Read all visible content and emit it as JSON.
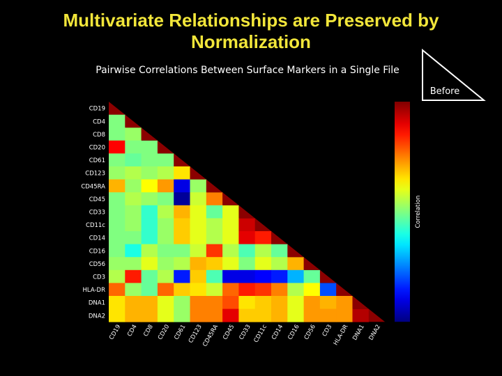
{
  "slide": {
    "title_line1": "Multivariate Relationships are Preserved by",
    "title_line2": "Normalization",
    "title_color": "#F2E63A",
    "background": "#000000"
  },
  "badge": {
    "label": "Before"
  },
  "chart_data": {
    "type": "heatmap",
    "title": "Pairwise Correlations Between Surface Markers in a Single File",
    "markers": [
      "CD19",
      "CD4",
      "CD8",
      "CD20",
      "CD61",
      "CD123",
      "CD45RA",
      "CD45",
      "CD33",
      "CD11c",
      "CD14",
      "CD16",
      "CD56",
      "CD3",
      "HLA-DR",
      "DNA1",
      "DNA2"
    ],
    "triangle": "lower",
    "diagonal_color": "#8B0000",
    "colorbar": {
      "label": "Correlation",
      "colormap": "jet",
      "range": [
        -1,
        1
      ],
      "ticks_visible": false
    },
    "values": [
      [],
      [
        0.0
      ],
      [
        0.0,
        0.05
      ],
      [
        0.75,
        0.0,
        0.0
      ],
      [
        0.0,
        -0.05,
        0.0,
        0.0
      ],
      [
        0.05,
        0.1,
        0.05,
        0.1,
        0.3
      ],
      [
        0.4,
        0.05,
        0.25,
        0.45,
        -0.8,
        0.05
      ],
      [
        0.0,
        0.1,
        0.05,
        0.0,
        -0.95,
        0.15,
        0.5
      ],
      [
        0.0,
        0.05,
        -0.15,
        0.1,
        0.4,
        0.2,
        -0.05,
        0.2
      ],
      [
        0.0,
        0.05,
        -0.15,
        0.05,
        0.35,
        0.2,
        0.1,
        0.2,
        0.85
      ],
      [
        0.0,
        0.0,
        -0.15,
        0.05,
        0.35,
        0.2,
        0.1,
        0.2,
        0.8,
        0.7
      ],
      [
        0.0,
        -0.2,
        0.1,
        0.0,
        0.0,
        0.15,
        0.65,
        0.1,
        -0.1,
        0.1,
        -0.05
      ],
      [
        0.05,
        0.05,
        0.2,
        0.05,
        0.1,
        0.4,
        0.35,
        0.2,
        0.0,
        0.2,
        0.1,
        0.4
      ],
      [
        0.1,
        0.7,
        -0.05,
        0.1,
        -0.7,
        0.35,
        -0.1,
        -0.8,
        -0.8,
        -0.75,
        -0.7,
        -0.4,
        -0.05
      ],
      [
        0.55,
        0.05,
        -0.05,
        0.55,
        0.35,
        0.3,
        0.15,
        0.55,
        0.7,
        0.65,
        0.5,
        0.1,
        0.25,
        -0.6
      ],
      [
        0.3,
        0.4,
        0.4,
        0.2,
        0.05,
        0.5,
        0.5,
        0.6,
        0.3,
        0.35,
        0.4,
        0.2,
        0.45,
        0.4,
        0.45
      ],
      [
        0.3,
        0.4,
        0.4,
        0.2,
        0.05,
        0.5,
        0.5,
        0.8,
        0.35,
        0.35,
        0.4,
        0.2,
        0.45,
        0.45,
        0.45,
        0.9
      ]
    ]
  }
}
